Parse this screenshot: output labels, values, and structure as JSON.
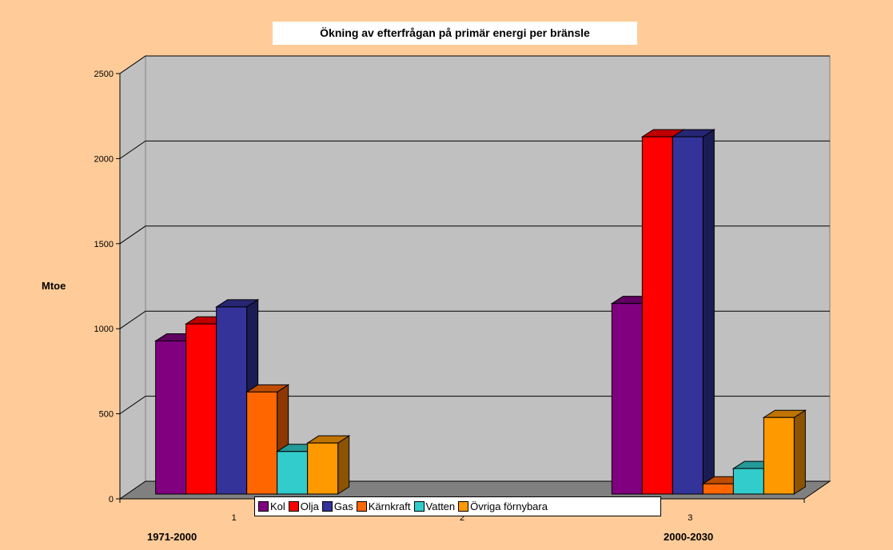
{
  "chart_data": {
    "type": "bar",
    "title": "Ökning av efterfrågan på primär energi per bränsle",
    "ylabel": "Mtoe",
    "categories": [
      "1",
      "2",
      "3"
    ],
    "category_names": [
      "1971-2000",
      "",
      "2000-2030"
    ],
    "ylim": [
      0,
      2500
    ],
    "yticks": [
      0,
      500,
      1000,
      1500,
      2000,
      2500
    ],
    "grid": true,
    "legend_position": "bottom",
    "series": [
      {
        "name": "Kol",
        "color": "#800080",
        "values": [
          900,
          0,
          1120
        ]
      },
      {
        "name": "Olja",
        "color": "#FF0000",
        "values": [
          1000,
          0,
          2100
        ]
      },
      {
        "name": "Gas",
        "color": "#333399",
        "values": [
          1100,
          0,
          2100
        ]
      },
      {
        "name": "Kärnkraft",
        "color": "#FF6600",
        "values": [
          600,
          0,
          60
        ]
      },
      {
        "name": "Vatten",
        "color": "#33CCCC",
        "values": [
          250,
          0,
          150
        ]
      },
      {
        "name": "Övriga förnybara",
        "color": "#FF9900",
        "values": [
          300,
          0,
          450
        ]
      }
    ]
  }
}
